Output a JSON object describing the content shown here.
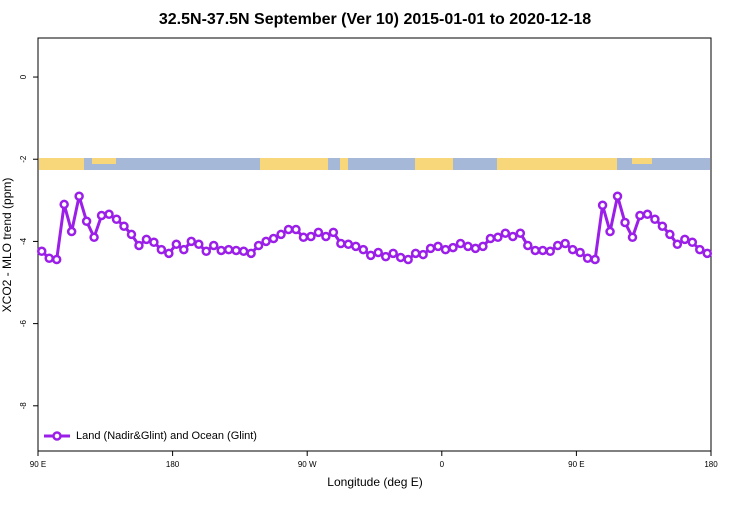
{
  "chart_data": {
    "type": "line",
    "title": "32.5N-37.5N September (Ver 10)   2015-01-01 to 2020-12-18",
    "x_label": "Longitude (deg E)",
    "y_label": "XCO2 - MLO trend (ppm)",
    "x": [
      92.5,
      97.5,
      102.5,
      107.5,
      112.5,
      117.5,
      122.5,
      127.5,
      132.5,
      137.5,
      142.5,
      147.5,
      152.5,
      157.5,
      162.5,
      167.5,
      172.5,
      177.5,
      182.5,
      187.5,
      192.5,
      197.5,
      202.5,
      207.5,
      212.5,
      217.5,
      222.5,
      227.5,
      232.5,
      237.5,
      242.5,
      247.5,
      252.5,
      257.5,
      262.5,
      267.5,
      272.5,
      277.5,
      282.5,
      287.5,
      292.5,
      297.5,
      302.5,
      307.5,
      312.5,
      317.5,
      322.5,
      327.5,
      332.5,
      337.5,
      342.5,
      347.5,
      352.5,
      357.5,
      362.5,
      367.5,
      372.5,
      377.5,
      382.5,
      387.5,
      392.5,
      397.5,
      402.5,
      407.5,
      412.5,
      417.5,
      422.5,
      427.5,
      432.5,
      437.5,
      442.5,
      447.5,
      452.5,
      457.5,
      462.5,
      467.5,
      472.5,
      477.5,
      482.5,
      487.5,
      492.5,
      497.5,
      502.5,
      507.5,
      512.5,
      517.5,
      522.5,
      527.5,
      532.5,
      537.5
    ],
    "series": [
      {
        "name": "Land (Nadir&Glint) and Ocean (Glint)",
        "color": "#9b1fe8",
        "values": [
          -4.24,
          -4.41,
          -4.44,
          -3.1,
          -3.76,
          -2.9,
          -3.51,
          -3.9,
          -3.37,
          -3.34,
          -3.46,
          -3.63,
          -3.83,
          -4.1,
          -3.95,
          -4.02,
          -4.2,
          -4.29,
          -4.07,
          -4.2,
          -4.0,
          -4.07,
          -4.24,
          -4.1,
          -4.22,
          -4.2,
          -4.22,
          -4.24,
          -4.29,
          -4.1,
          -4.0,
          -3.93,
          -3.83,
          -3.71,
          -3.71,
          -3.9,
          -3.88,
          -3.78,
          -3.88,
          -3.78,
          -4.05,
          -4.07,
          -4.12,
          -4.2,
          -4.34,
          -4.27,
          -4.37,
          -4.29,
          -4.39,
          -4.44,
          -4.29,
          -4.32,
          -4.17,
          -4.12,
          -4.2,
          -4.15,
          -4.05,
          -4.12,
          -4.17,
          -4.12,
          -3.93,
          -3.9,
          -3.8,
          -3.88,
          -3.8,
          -4.1,
          -4.22,
          -4.22,
          -4.24,
          -4.1,
          -4.05,
          -4.2,
          -4.27,
          -4.41,
          -4.44,
          -3.12,
          -3.76,
          -2.9,
          -3.54,
          -3.9,
          -3.37,
          -3.34,
          -3.46,
          -3.63,
          -3.83,
          -4.07,
          -3.95,
          -4.02,
          -4.2,
          -4.29
        ]
      }
    ],
    "xlim": [
      90,
      540
    ],
    "xticks": [
      {
        "value": 90,
        "label": "90 E"
      },
      180,
      {
        "value": 270,
        "label": "90 W"
      },
      {
        "value": 360,
        "label": "0"
      },
      {
        "value": 450,
        "label": "90 E"
      },
      {
        "value": 540,
        "label": "180"
      }
    ],
    "ylim": [
      -9.1,
      0.95
    ],
    "yticks": [
      -8,
      -6,
      -4,
      -2,
      0
    ],
    "legend": "bottom-left"
  }
}
